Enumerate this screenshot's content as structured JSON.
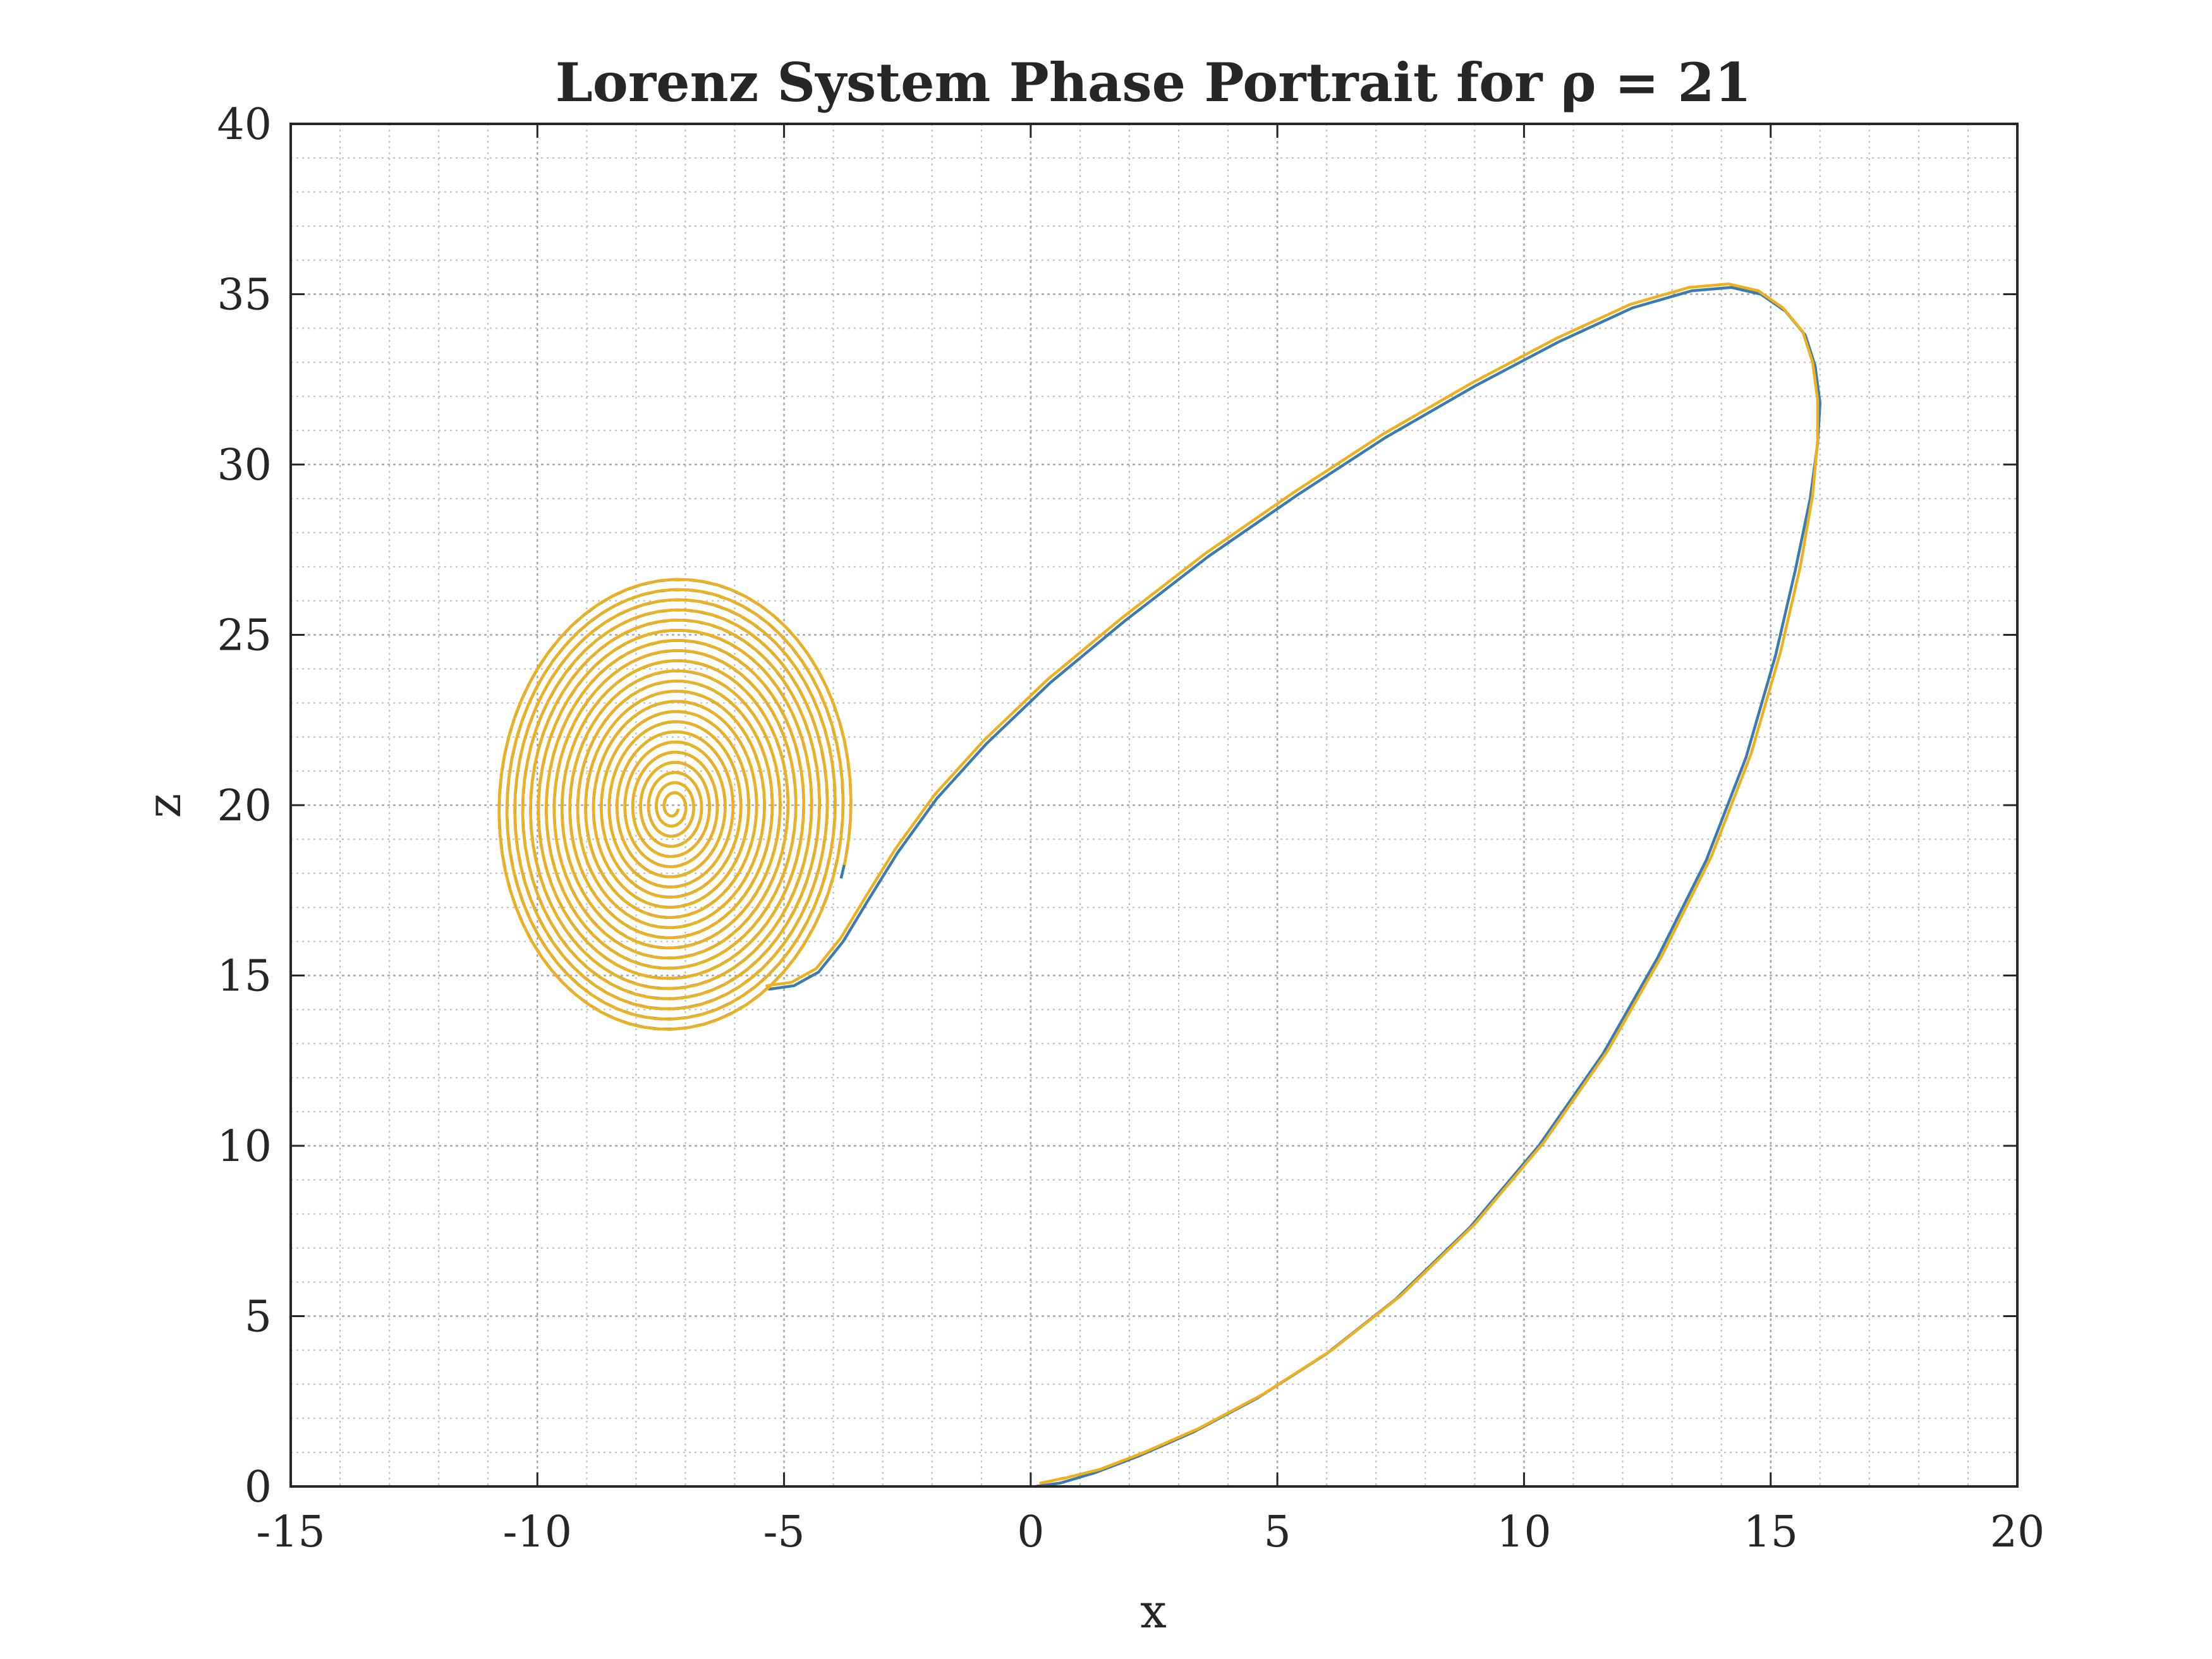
{
  "chart_data": {
    "type": "line",
    "title": "Lorenz System Phase Portrait for ρ = 21",
    "xlabel": "x",
    "ylabel": "z",
    "xlim": [
      -15,
      20
    ],
    "ylim": [
      0,
      40
    ],
    "xticks": [
      -15,
      -10,
      -5,
      0,
      5,
      10,
      15,
      20
    ],
    "xtick_labels": [
      "-15",
      "-10",
      "-5",
      "0",
      "5",
      "10",
      "15",
      "20"
    ],
    "yticks": [
      0,
      5,
      10,
      15,
      20,
      25,
      30,
      35,
      40
    ],
    "ytick_labels": [
      "0",
      "5",
      "10",
      "15",
      "20",
      "25",
      "30",
      "35",
      "40"
    ],
    "grid": true,
    "minor_grid": true,
    "series": [
      {
        "color": "#3b7bb0",
        "x": [
          0.1,
          0.6,
          1.3,
          2.2,
          3.3,
          4.6,
          6.0,
          7.4,
          8.9,
          10.3,
          11.6,
          12.7,
          13.7,
          14.5,
          15.1,
          15.5,
          15.8,
          15.95,
          16.0,
          15.9,
          15.7,
          15.3,
          14.8,
          14.2,
          13.4,
          12.2,
          10.7,
          9.0,
          7.2,
          5.4,
          3.6,
          1.9,
          0.4,
          -0.9,
          -1.9,
          -2.7,
          -3.3,
          -3.8,
          -4.3,
          -4.8,
          -5.3
        ],
        "y": [
          0.0,
          0.1,
          0.4,
          0.9,
          1.6,
          2.6,
          3.9,
          5.5,
          7.6,
          10.0,
          12.7,
          15.5,
          18.4,
          21.4,
          24.4,
          26.9,
          29.0,
          30.6,
          31.8,
          32.9,
          33.8,
          34.5,
          35.0,
          35.2,
          35.1,
          34.6,
          33.6,
          32.3,
          30.8,
          29.1,
          27.3,
          25.4,
          23.6,
          21.8,
          20.2,
          18.6,
          17.2,
          16.0,
          15.1,
          14.7,
          14.6
        ],
        "spiral": {
          "center": [
            -7.25,
            19.95
          ],
          "radius_x": 3.6,
          "radius_y": 6.8,
          "turns": 22
        }
      },
      {
        "color": "#edb120",
        "x": [
          0.2,
          0.7,
          1.4,
          2.3,
          3.4,
          4.7,
          6.1,
          7.5,
          9.0,
          10.4,
          11.7,
          12.8,
          13.8,
          14.6,
          15.2,
          15.6,
          15.85,
          15.95,
          15.95,
          15.85,
          15.65,
          15.25,
          14.75,
          14.15,
          13.35,
          12.15,
          10.65,
          8.95,
          7.15,
          5.35,
          3.55,
          1.85,
          0.35,
          -0.95,
          -1.95,
          -2.75,
          -3.35,
          -3.85,
          -4.35,
          -4.85,
          -5.35
        ],
        "y": [
          0.1,
          0.25,
          0.5,
          1.0,
          1.7,
          2.7,
          4.0,
          5.6,
          7.7,
          10.1,
          12.8,
          15.6,
          18.5,
          21.5,
          24.5,
          27.0,
          29.1,
          30.7,
          31.9,
          33.0,
          33.9,
          34.6,
          35.1,
          35.3,
          35.2,
          34.7,
          33.7,
          32.4,
          30.9,
          29.2,
          27.4,
          25.5,
          23.7,
          21.9,
          20.3,
          18.7,
          17.3,
          16.1,
          15.2,
          14.8,
          14.7
        ],
        "spiral": {
          "center": [
            -7.25,
            19.95
          ],
          "radius_x": 3.6,
          "radius_y": 6.8,
          "turns": 22
        }
      }
    ]
  }
}
